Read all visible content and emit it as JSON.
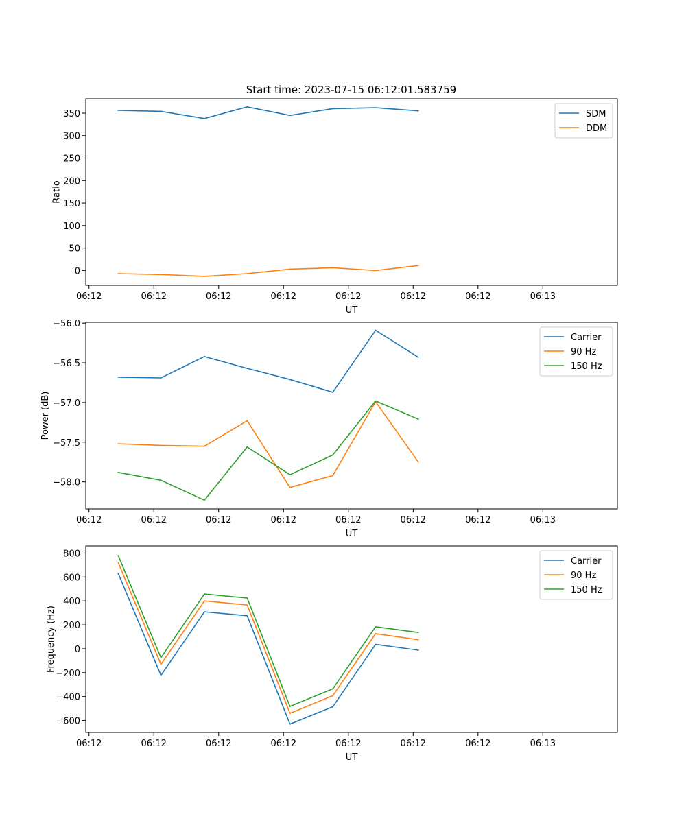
{
  "figure_title": "Start time: 2023-07-15 06:12:01.583759",
  "colors": {
    "blue": "#1f77b4",
    "orange": "#ff7f0e",
    "green": "#2ca02c"
  },
  "chart_data": [
    {
      "type": "line",
      "title": "Start time: 2023-07-15 06:12:01.583759",
      "xlabel": "UT",
      "ylabel": "Ratio",
      "xlim": [
        0,
        8.2
      ],
      "ylim": [
        -33,
        382
      ],
      "x_ticks": [
        {
          "value": 0.05,
          "label": "06:12"
        },
        {
          "value": 1.05,
          "label": "06:12"
        },
        {
          "value": 2.05,
          "label": "06:12"
        },
        {
          "value": 3.05,
          "label": "06:12"
        },
        {
          "value": 4.05,
          "label": "06:12"
        },
        {
          "value": 5.05,
          "label": "06:12"
        },
        {
          "value": 6.05,
          "label": "06:12"
        },
        {
          "value": 7.05,
          "label": "06:13"
        }
      ],
      "y_ticks": [
        {
          "value": 0,
          "label": "0"
        },
        {
          "value": 50,
          "label": "50"
        },
        {
          "value": 100,
          "label": "100"
        },
        {
          "value": 150,
          "label": "150"
        },
        {
          "value": 200,
          "label": "200"
        },
        {
          "value": 250,
          "label": "250"
        },
        {
          "value": 300,
          "label": "300"
        },
        {
          "value": 350,
          "label": "350"
        }
      ],
      "x": [
        0.5,
        1.16,
        1.83,
        2.49,
        3.15,
        3.81,
        4.47,
        5.13
      ],
      "series": [
        {
          "name": "SDM",
          "color": "#1f77b4",
          "values": [
            356,
            354,
            338,
            364,
            345,
            360,
            362,
            355
          ]
        },
        {
          "name": "DDM",
          "color": "#ff7f0e",
          "values": [
            -7,
            -9,
            -13,
            -7,
            3,
            6,
            0,
            11
          ]
        }
      ],
      "legend": "top-right"
    },
    {
      "type": "line",
      "title": "",
      "xlabel": "UT",
      "ylabel": "Power (dB)",
      "xlim": [
        0,
        8.2
      ],
      "ylim": [
        -58.34,
        -55.99
      ],
      "x_ticks": [
        {
          "value": 0.05,
          "label": "06:12"
        },
        {
          "value": 1.05,
          "label": "06:12"
        },
        {
          "value": 2.05,
          "label": "06:12"
        },
        {
          "value": 3.05,
          "label": "06:12"
        },
        {
          "value": 4.05,
          "label": "06:12"
        },
        {
          "value": 5.05,
          "label": "06:12"
        },
        {
          "value": 6.05,
          "label": "06:12"
        },
        {
          "value": 7.05,
          "label": "06:13"
        }
      ],
      "y_ticks": [
        {
          "value": -58.0,
          "label": "−58.0"
        },
        {
          "value": -57.5,
          "label": "−57.5"
        },
        {
          "value": -57.0,
          "label": "−57.0"
        },
        {
          "value": -56.5,
          "label": "−56.5"
        },
        {
          "value": -56.0,
          "label": "−56.0"
        }
      ],
      "x": [
        0.5,
        1.16,
        1.83,
        2.49,
        3.15,
        3.81,
        4.47,
        5.13
      ],
      "series": [
        {
          "name": "Carrier",
          "color": "#1f77b4",
          "values": [
            -56.68,
            -56.69,
            -56.42,
            -56.57,
            -56.71,
            -56.87,
            -56.09,
            -56.43
          ]
        },
        {
          "name": "90 Hz",
          "color": "#ff7f0e",
          "values": [
            -57.52,
            -57.54,
            -57.55,
            -57.23,
            -58.07,
            -57.92,
            -56.99,
            -57.75
          ]
        },
        {
          "name": "150 Hz",
          "color": "#2ca02c",
          "values": [
            -57.88,
            -57.98,
            -58.23,
            -57.56,
            -57.91,
            -57.66,
            -56.98,
            -57.21
          ]
        }
      ],
      "legend": "top-right"
    },
    {
      "type": "line",
      "title": "",
      "xlabel": "UT",
      "ylabel": "Frequency (Hz)",
      "xlim": [
        0,
        8.2
      ],
      "ylim": [
        -700,
        860
      ],
      "x_ticks": [
        {
          "value": 0.05,
          "label": "06:12"
        },
        {
          "value": 1.05,
          "label": "06:12"
        },
        {
          "value": 2.05,
          "label": "06:12"
        },
        {
          "value": 3.05,
          "label": "06:12"
        },
        {
          "value": 4.05,
          "label": "06:12"
        },
        {
          "value": 5.05,
          "label": "06:12"
        },
        {
          "value": 6.05,
          "label": "06:12"
        },
        {
          "value": 7.05,
          "label": "06:13"
        }
      ],
      "y_ticks": [
        {
          "value": -600,
          "label": "−600"
        },
        {
          "value": -400,
          "label": "−400"
        },
        {
          "value": -200,
          "label": "−200"
        },
        {
          "value": 0,
          "label": "0"
        },
        {
          "value": 200,
          "label": "200"
        },
        {
          "value": 400,
          "label": "400"
        },
        {
          "value": 600,
          "label": "600"
        },
        {
          "value": 800,
          "label": "800"
        }
      ],
      "x": [
        0.5,
        1.16,
        1.83,
        2.49,
        3.15,
        3.81,
        4.47,
        5.13
      ],
      "series": [
        {
          "name": "Carrier",
          "color": "#1f77b4",
          "values": [
            630,
            -222,
            309,
            276,
            -630,
            -485,
            37,
            -12
          ]
        },
        {
          "name": "90 Hz",
          "color": "#ff7f0e",
          "values": [
            720,
            -130,
            400,
            366,
            -540,
            -392,
            126,
            76
          ]
        },
        {
          "name": "150 Hz",
          "color": "#2ca02c",
          "values": [
            780,
            -75,
            458,
            424,
            -482,
            -335,
            184,
            136
          ]
        }
      ],
      "legend": "top-right"
    }
  ]
}
